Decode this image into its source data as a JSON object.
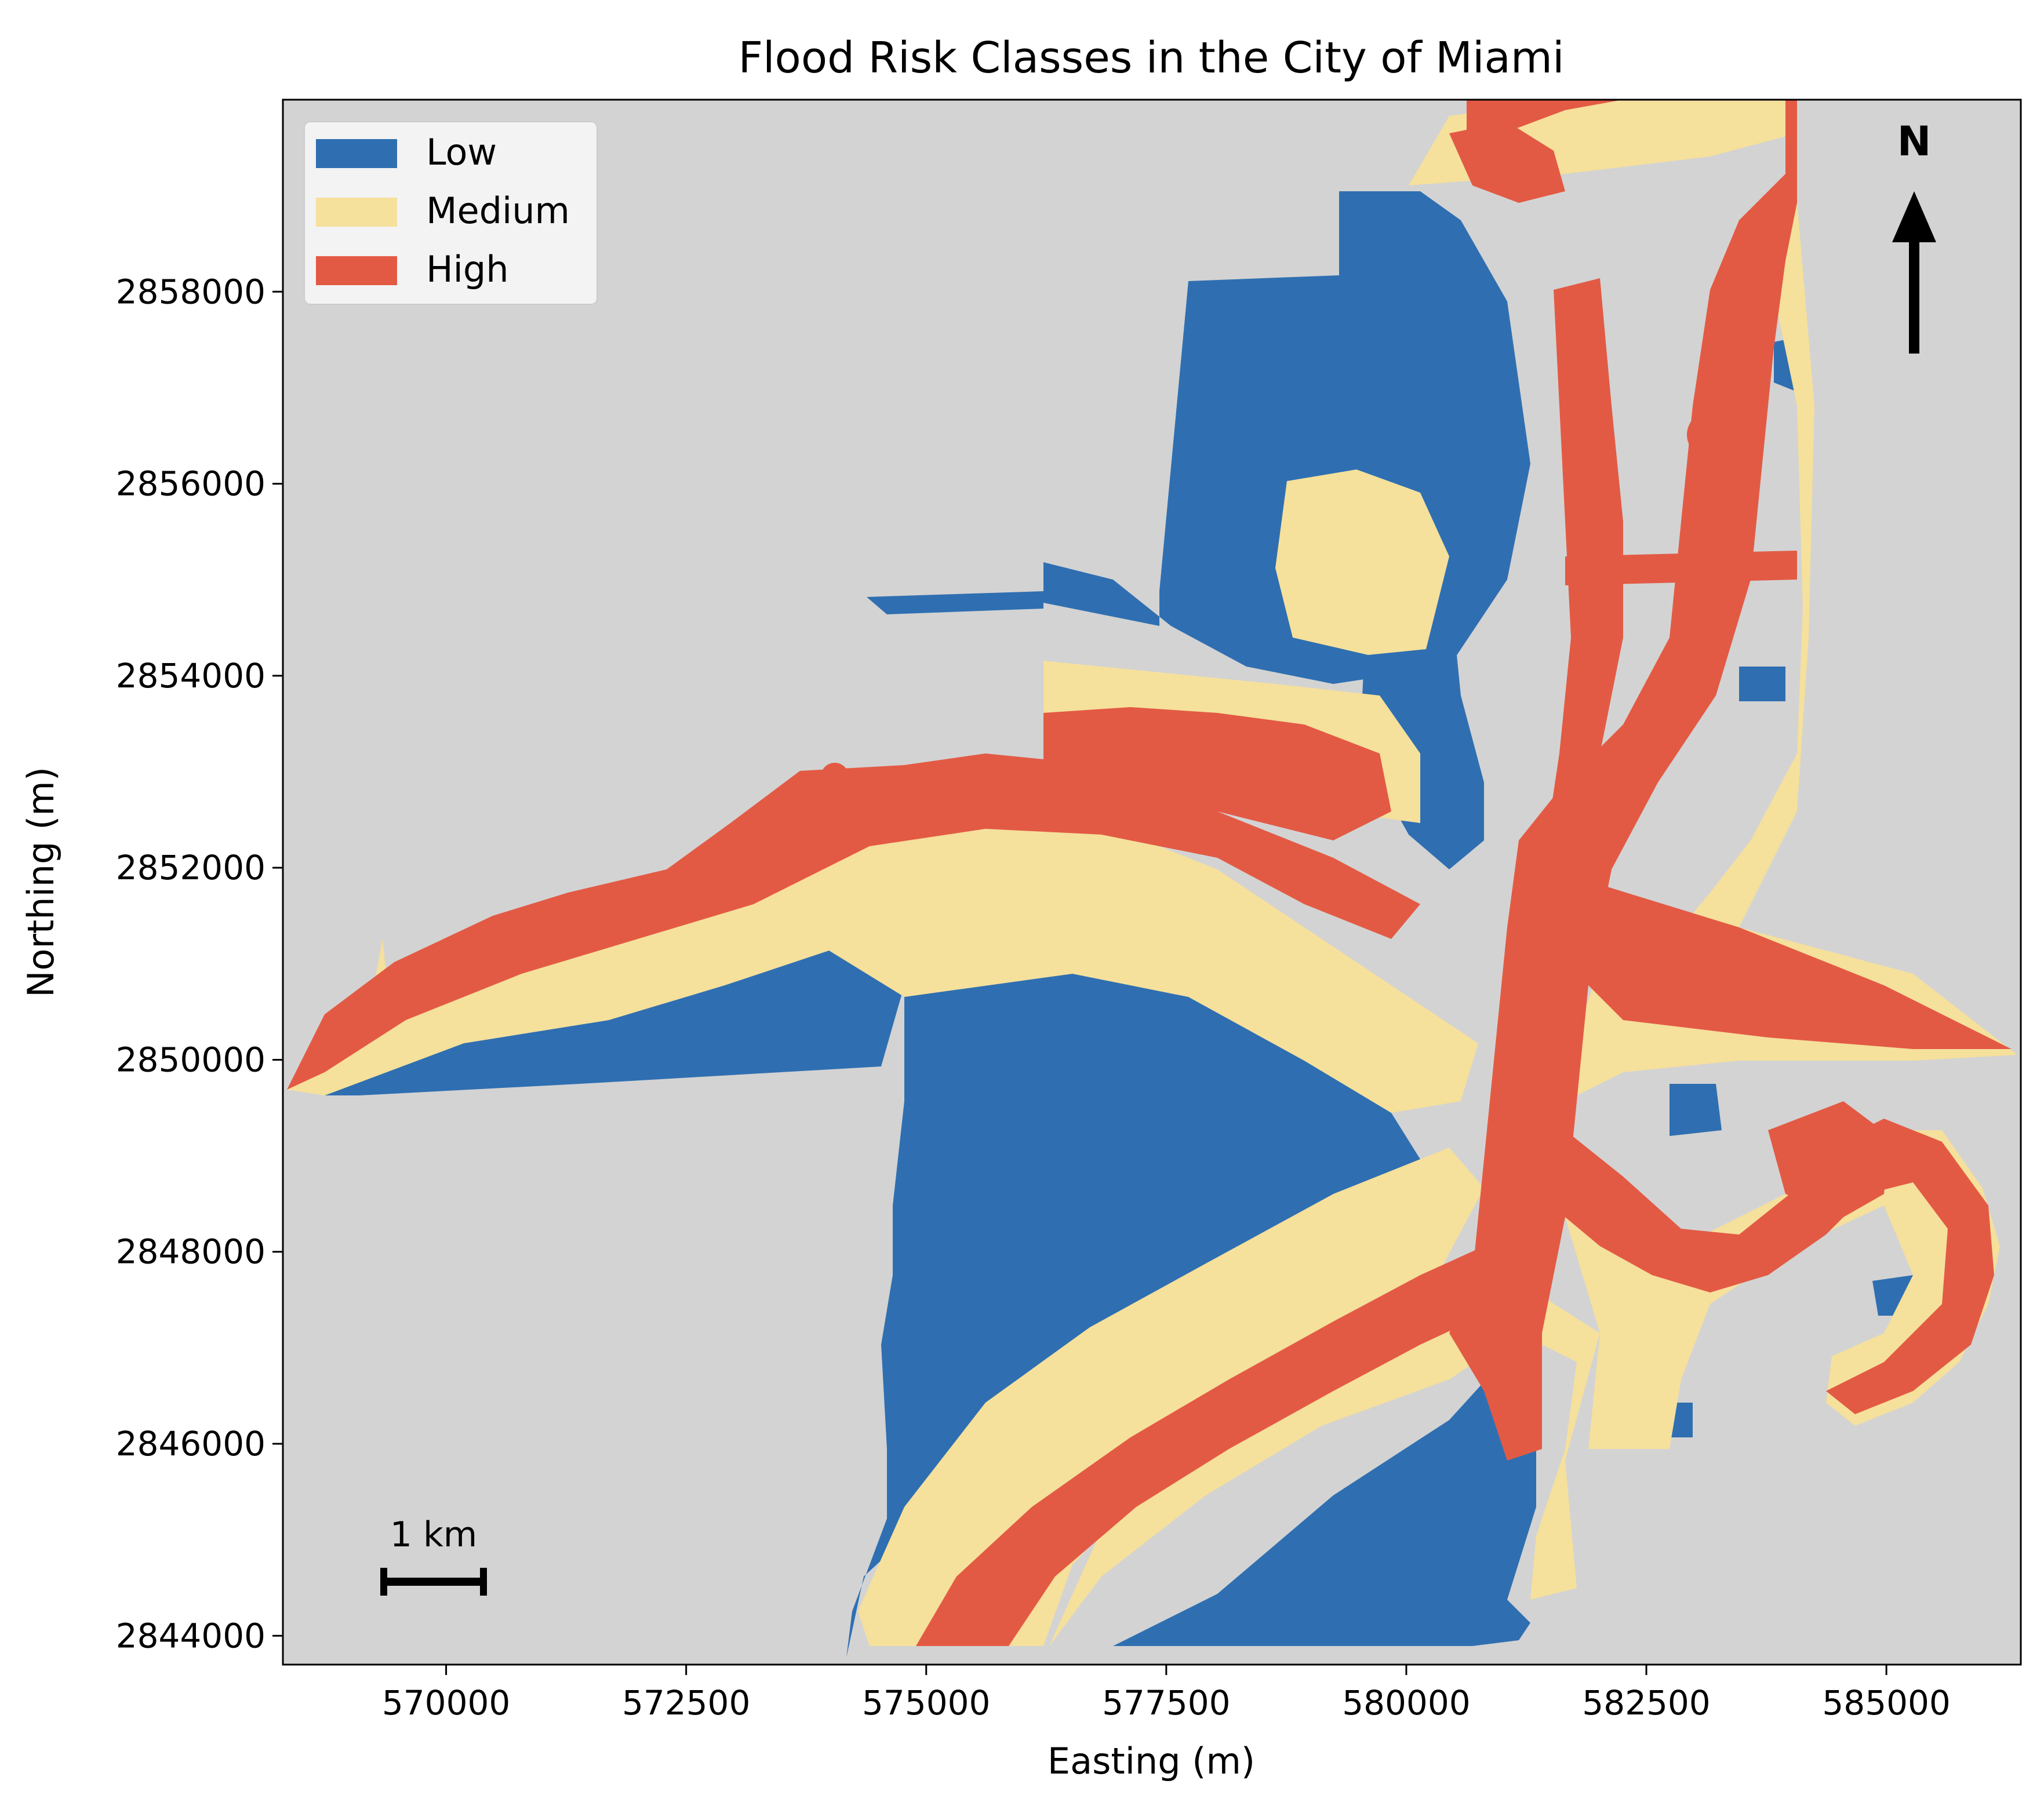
{
  "title": "Flood Risk Classes in the City of Miami",
  "xaxis": {
    "label": "Easting (m)",
    "range": [
      568300,
      586400
    ],
    "ticks": [
      {
        "value": 570000,
        "label": "570000"
      },
      {
        "value": 572500,
        "label": "572500"
      },
      {
        "value": 575000,
        "label": "575000"
      },
      {
        "value": 577500,
        "label": "577500"
      },
      {
        "value": 580000,
        "label": "580000"
      },
      {
        "value": 582500,
        "label": "582500"
      },
      {
        "value": 585000,
        "label": "585000"
      }
    ]
  },
  "yaxis": {
    "label": "Northing (m)",
    "range": [
      2843700,
      2860000
    ],
    "ticks": [
      {
        "value": 2844000,
        "label": "2844000"
      },
      {
        "value": 2846000,
        "label": "2846000"
      },
      {
        "value": 2848000,
        "label": "2848000"
      },
      {
        "value": 2850000,
        "label": "2850000"
      },
      {
        "value": 2852000,
        "label": "2852000"
      },
      {
        "value": 2854000,
        "label": "2854000"
      },
      {
        "value": 2856000,
        "label": "2856000"
      },
      {
        "value": 2858000,
        "label": "2858000"
      }
    ]
  },
  "legend": {
    "placement": "upper-left",
    "items": [
      {
        "label": "Low",
        "color": "#2f6fb1"
      },
      {
        "label": "Medium",
        "color": "#f5e09c"
      },
      {
        "label": "High",
        "color": "#e35a44"
      }
    ]
  },
  "colors": {
    "background": "#d3d3d3",
    "low": "#2f6fb1",
    "medium": "#f5e09c",
    "high": "#e35a44"
  },
  "north_arrow": {
    "label": "N",
    "placement": "upper-right"
  },
  "scale_bar": {
    "label": "1 km",
    "length_m": 1000,
    "placement": "lower-left"
  }
}
